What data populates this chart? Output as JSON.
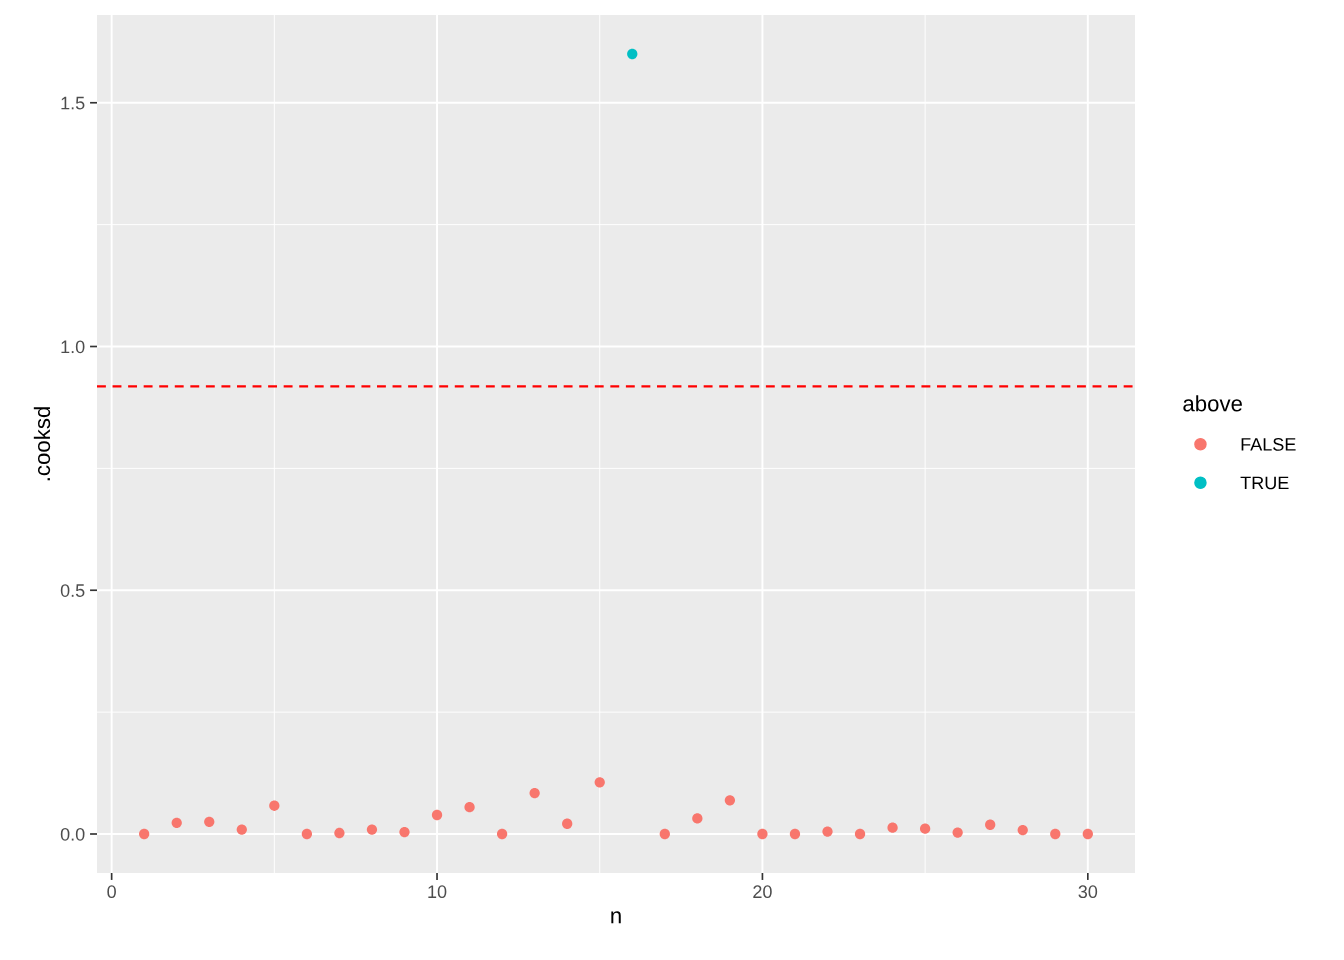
{
  "chart_data": {
    "type": "scatter",
    "xlabel": "n",
    "ylabel": ".cooksd",
    "legend_title": "above",
    "xlim": [
      -0.45,
      31.45
    ],
    "ylim": [
      -0.08,
      1.68
    ],
    "xticks": [
      0,
      10,
      20,
      30
    ],
    "yticks": [
      {
        "value": 0,
        "label": "0.0"
      },
      0.5,
      {
        "value": 1,
        "label": "1.0"
      },
      1.5
    ],
    "grid": true,
    "legend": "right",
    "marker": "circle",
    "series": [
      {
        "name": "FALSE",
        "color": "#f8766d",
        "x": [
          1,
          2,
          3,
          4,
          5,
          6,
          7,
          8,
          9,
          10,
          11,
          12,
          13,
          14,
          15,
          17,
          18,
          19,
          20,
          21,
          22,
          23,
          24,
          25,
          26,
          27,
          28,
          29,
          30
        ],
        "values": [
          0.0,
          0.023,
          0.025,
          0.009,
          0.058,
          0.0,
          0.002,
          0.009,
          0.004,
          0.039,
          0.055,
          0.0,
          0.084,
          0.021,
          0.106,
          0.0,
          0.032,
          0.069,
          0.0,
          0.0,
          0.005,
          0.0,
          0.013,
          0.011,
          0.003,
          0.019,
          0.008,
          0.0,
          0.0
        ]
      },
      {
        "name": "TRUE",
        "color": "#00bfc4",
        "x": [
          16
        ],
        "values": [
          1.6
        ]
      }
    ],
    "ref_lines": [
      {
        "axis": "y",
        "value": 0.918,
        "color": "#ff0000",
        "line_style": "dashed"
      }
    ]
  }
}
